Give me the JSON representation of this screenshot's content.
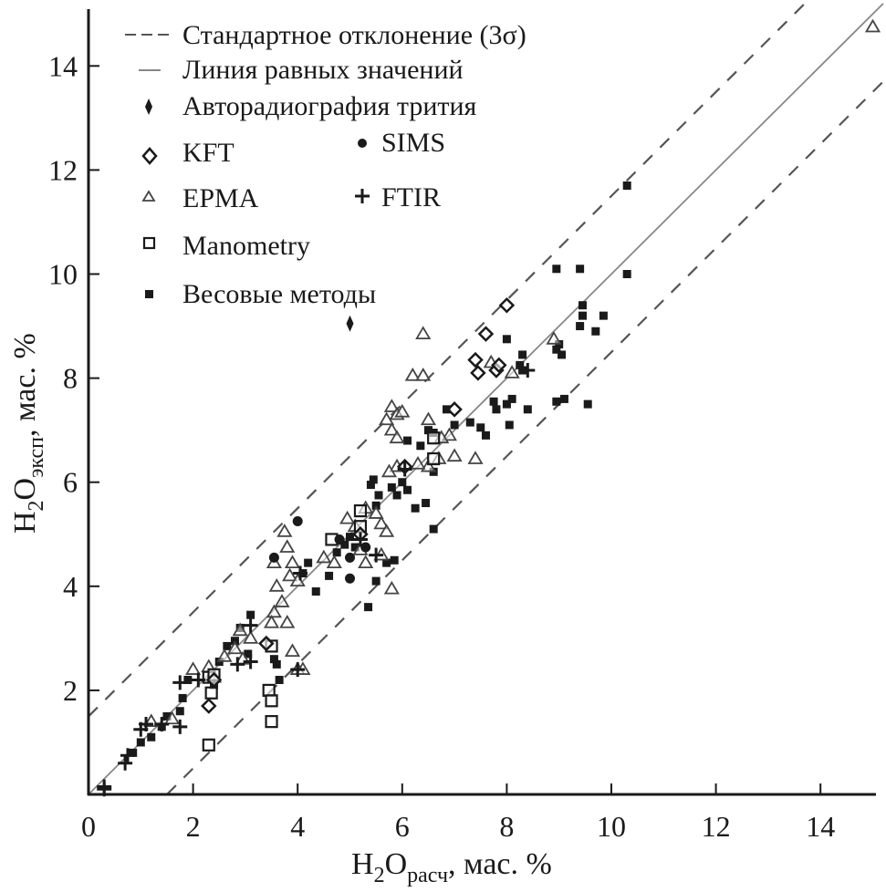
{
  "chart_data": {
    "type": "scatter",
    "title": "",
    "xlabel": {
      "main": "H",
      "sub1": "2",
      "mid": "O",
      "sub2": "расч",
      "rest": ", мас. %"
    },
    "ylabel": {
      "main": "H",
      "sub1": "2",
      "mid": "O",
      "sub2": "эксп",
      "rest": ", мас. %"
    },
    "xlim": [
      0,
      15.2
    ],
    "ylim": [
      0,
      15.2
    ],
    "xticks": [
      0,
      2,
      4,
      6,
      8,
      10,
      12,
      14
    ],
    "yticks": [
      2,
      4,
      6,
      8,
      10,
      12,
      14
    ],
    "xtick_labels": [
      "0",
      "2",
      "4",
      "6",
      "8",
      "10",
      "12",
      "14"
    ],
    "ytick_labels": [
      "2",
      "4",
      "6",
      "8",
      "10",
      "12",
      "14"
    ],
    "grid": false,
    "legend_position": "top-left",
    "lines": [
      {
        "name": "Стандартное отклонение (3σ)",
        "style": "dashed",
        "color": "#555555",
        "offsets": [
          1.5,
          -1.5
        ]
      },
      {
        "name": "Линия равных значений",
        "style": "solid",
        "color": "#888888",
        "offsets": [
          0
        ]
      }
    ],
    "series": [
      {
        "name": "Авторадиография трития",
        "marker": "small-diamond-filled",
        "points": [
          [
            5.0,
            9.05
          ]
        ]
      },
      {
        "name": "KFT",
        "marker": "diamond-open",
        "points": [
          [
            8.0,
            9.4
          ],
          [
            7.6,
            8.85
          ],
          [
            7.4,
            8.35
          ],
          [
            7.45,
            8.1
          ],
          [
            7.8,
            8.15
          ],
          [
            7.85,
            8.25
          ],
          [
            7.0,
            7.4
          ],
          [
            6.05,
            6.3
          ],
          [
            5.2,
            5.0
          ],
          [
            2.3,
            1.7
          ],
          [
            3.4,
            2.9
          ],
          [
            2.4,
            2.2
          ]
        ]
      },
      {
        "name": "EPMA",
        "marker": "triangle-open",
        "points": [
          [
            15.0,
            14.75
          ],
          [
            6.4,
            8.85
          ],
          [
            6.2,
            8.05
          ],
          [
            6.4,
            8.05
          ],
          [
            5.8,
            7.45
          ],
          [
            5.9,
            7.3
          ],
          [
            5.7,
            7.2
          ],
          [
            6.0,
            7.35
          ],
          [
            6.5,
            7.2
          ],
          [
            5.8,
            7.0
          ],
          [
            5.9,
            6.85
          ],
          [
            7.7,
            8.3
          ],
          [
            8.1,
            8.1
          ],
          [
            8.9,
            8.75
          ],
          [
            7.4,
            6.45
          ],
          [
            6.9,
            6.9
          ],
          [
            6.75,
            6.85
          ],
          [
            6.7,
            6.45
          ],
          [
            7.0,
            6.5
          ],
          [
            6.5,
            6.3
          ],
          [
            5.9,
            6.3
          ],
          [
            5.75,
            6.2
          ],
          [
            6.3,
            6.35
          ],
          [
            5.5,
            5.4
          ],
          [
            5.3,
            5.5
          ],
          [
            5.6,
            5.2
          ],
          [
            5.7,
            5.05
          ],
          [
            5.6,
            4.6
          ],
          [
            5.8,
            3.95
          ],
          [
            4.5,
            4.55
          ],
          [
            4.7,
            4.45
          ],
          [
            5.1,
            5.15
          ],
          [
            4.95,
            5.3
          ],
          [
            5.2,
            4.7
          ],
          [
            5.3,
            4.45
          ],
          [
            3.75,
            5.05
          ],
          [
            3.8,
            4.75
          ],
          [
            3.9,
            4.45
          ],
          [
            3.85,
            4.2
          ],
          [
            4.0,
            4.1
          ],
          [
            3.6,
            4.0
          ],
          [
            3.7,
            3.7
          ],
          [
            3.55,
            3.5
          ],
          [
            3.5,
            3.3
          ],
          [
            3.8,
            3.3
          ],
          [
            3.55,
            4.45
          ],
          [
            3.9,
            2.75
          ],
          [
            4.0,
            2.4
          ],
          [
            4.1,
            2.4
          ],
          [
            2.9,
            3.15
          ],
          [
            3.1,
            3.0
          ],
          [
            2.8,
            2.8
          ],
          [
            2.95,
            2.6
          ],
          [
            2.6,
            2.65
          ],
          [
            2.0,
            2.4
          ],
          [
            2.3,
            2.45
          ],
          [
            1.6,
            1.45
          ],
          [
            1.2,
            1.4
          ],
          [
            2.4,
            2.25
          ]
        ]
      },
      {
        "name": "Manometry",
        "marker": "square-open",
        "points": [
          [
            6.6,
            6.85
          ],
          [
            6.6,
            6.45
          ],
          [
            5.2,
            5.45
          ],
          [
            5.2,
            5.15
          ],
          [
            4.65,
            4.9
          ],
          [
            2.3,
            2.25
          ],
          [
            2.35,
            1.95
          ],
          [
            2.3,
            0.95
          ],
          [
            3.5,
            2.85
          ],
          [
            3.45,
            2.0
          ],
          [
            3.5,
            1.8
          ],
          [
            3.5,
            1.4
          ],
          [
            2.4,
            2.3
          ]
        ]
      },
      {
        "name": "Весовые методы",
        "marker": "square-filled",
        "points": [
          [
            10.3,
            11.7
          ],
          [
            8.95,
            10.1
          ],
          [
            9.4,
            10.1
          ],
          [
            10.3,
            10.0
          ],
          [
            9.45,
            9.4
          ],
          [
            9.45,
            9.2
          ],
          [
            9.85,
            9.2
          ],
          [
            9.4,
            9.0
          ],
          [
            9.7,
            8.9
          ],
          [
            8.0,
            8.75
          ],
          [
            8.95,
            8.55
          ],
          [
            9.05,
            8.45
          ],
          [
            9.0,
            8.65
          ],
          [
            8.3,
            8.45
          ],
          [
            8.25,
            8.25
          ],
          [
            8.3,
            8.15
          ],
          [
            8.1,
            7.6
          ],
          [
            8.0,
            7.5
          ],
          [
            8.4,
            7.4
          ],
          [
            8.05,
            7.1
          ],
          [
            7.75,
            7.55
          ],
          [
            7.8,
            7.4
          ],
          [
            7.5,
            7.05
          ],
          [
            7.6,
            6.9
          ],
          [
            7.3,
            7.15
          ],
          [
            6.85,
            7.4
          ],
          [
            7.0,
            7.1
          ],
          [
            8.95,
            7.55
          ],
          [
            9.1,
            7.6
          ],
          [
            9.55,
            7.5
          ],
          [
            6.6,
            6.95
          ],
          [
            6.5,
            7.0
          ],
          [
            6.35,
            6.7
          ],
          [
            6.6,
            6.2
          ],
          [
            6.1,
            6.8
          ],
          [
            6.0,
            6.0
          ],
          [
            6.1,
            5.85
          ],
          [
            5.8,
            5.9
          ],
          [
            5.55,
            5.75
          ],
          [
            5.4,
            5.95
          ],
          [
            5.9,
            5.75
          ],
          [
            5.5,
            5.55
          ],
          [
            6.25,
            5.5
          ],
          [
            6.45,
            5.6
          ],
          [
            5.45,
            6.05
          ],
          [
            6.6,
            5.1
          ],
          [
            5.7,
            4.45
          ],
          [
            5.85,
            4.5
          ],
          [
            5.5,
            4.1
          ],
          [
            5.35,
            3.6
          ],
          [
            4.9,
            4.8
          ],
          [
            4.75,
            4.65
          ],
          [
            4.6,
            4.2
          ],
          [
            4.35,
            3.9
          ],
          [
            5.0,
            4.95
          ],
          [
            5.1,
            4.75
          ],
          [
            4.1,
            4.25
          ],
          [
            4.2,
            4.45
          ],
          [
            3.6,
            2.5
          ],
          [
            3.65,
            2.2
          ],
          [
            3.55,
            2.6
          ],
          [
            3.1,
            3.45
          ],
          [
            2.9,
            3.2
          ],
          [
            2.8,
            2.95
          ],
          [
            3.05,
            2.7
          ],
          [
            2.65,
            2.85
          ],
          [
            2.5,
            2.55
          ],
          [
            2.4,
            2.1
          ],
          [
            1.9,
            2.2
          ],
          [
            1.8,
            1.85
          ],
          [
            1.75,
            1.6
          ],
          [
            1.5,
            1.5
          ],
          [
            1.4,
            1.3
          ],
          [
            1.2,
            1.1
          ],
          [
            1.0,
            1.0
          ],
          [
            0.85,
            0.8
          ]
        ]
      },
      {
        "name": "SIMS",
        "marker": "circle-filled",
        "points": [
          [
            4.0,
            5.25
          ],
          [
            3.55,
            4.55
          ],
          [
            5.0,
            4.55
          ],
          [
            5.0,
            4.15
          ],
          [
            5.3,
            4.75
          ],
          [
            4.8,
            4.9
          ]
        ]
      },
      {
        "name": "FTIR",
        "marker": "plus",
        "points": [
          [
            0.3,
            0.15
          ],
          [
            0.3,
            0.1
          ],
          [
            0.7,
            0.6
          ],
          [
            0.75,
            0.75
          ],
          [
            1.1,
            1.35
          ],
          [
            1.4,
            1.35
          ],
          [
            1.75,
            1.3
          ],
          [
            1.75,
            2.15
          ],
          [
            2.1,
            2.2
          ],
          [
            3.1,
            2.55
          ],
          [
            2.85,
            2.5
          ],
          [
            4.0,
            2.4
          ],
          [
            3.1,
            3.25
          ],
          [
            4.05,
            4.25
          ],
          [
            5.2,
            4.9
          ],
          [
            5.5,
            4.6
          ],
          [
            6.05,
            6.25
          ],
          [
            8.4,
            8.15
          ],
          [
            1.0,
            1.25
          ]
        ]
      }
    ]
  },
  "legend": {
    "items": [
      {
        "label": "Стандартное отклонение (3σ)",
        "symbol": "dashed-line"
      },
      {
        "label": "Линия равных значений",
        "symbol": "solid-line"
      },
      {
        "label": "Авторадиография трития",
        "symbol": "small-diamond-filled"
      },
      {
        "label": "KFT",
        "symbol": "diamond-open"
      },
      {
        "label": "SIMS",
        "symbol": "circle-filled"
      },
      {
        "label": "EPMA",
        "symbol": "triangle-open"
      },
      {
        "label": "FTIR",
        "symbol": "plus"
      },
      {
        "label": "Manometry",
        "symbol": "square-open"
      },
      {
        "label": "Весовые методы",
        "symbol": "square-filled"
      }
    ]
  }
}
